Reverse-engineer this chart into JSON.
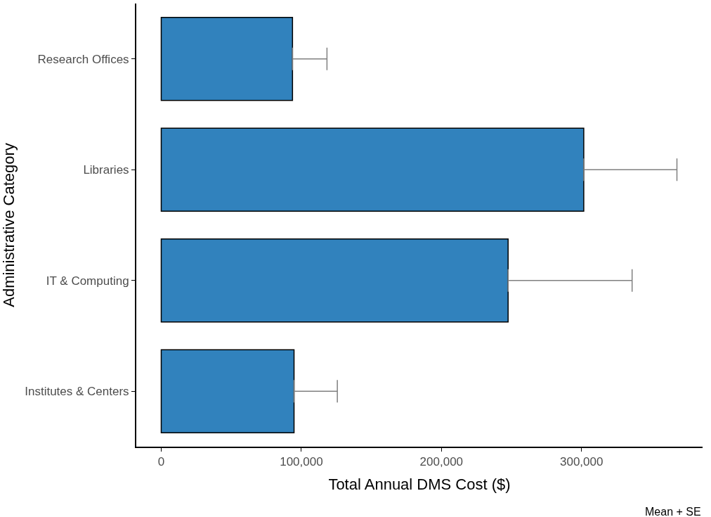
{
  "chart_data": {
    "type": "bar",
    "orientation": "horizontal",
    "xlabel": "Total Annual DMS Cost ($)",
    "ylabel": "Administrative Category",
    "categories": [
      "Research Offices",
      "Libraries",
      "IT & Computing",
      "Institutes & Centers"
    ],
    "values": [
      93700,
      301600,
      247600,
      94800
    ],
    "errors": [
      [
        93700,
        118300
      ],
      [
        301600,
        368100
      ],
      [
        247600,
        336100
      ],
      [
        94800,
        125700
      ]
    ],
    "color": "#3182bd",
    "xlim": [
      -17800,
      386400
    ],
    "xticks": [
      0,
      {
        "value": 100000,
        "label": "100,000"
      },
      {
        "value": 200000,
        "label": "200,000"
      },
      {
        "value": 300000,
        "label": "300,000"
      }
    ],
    "annotations": [
      "Mean + SE"
    ]
  }
}
